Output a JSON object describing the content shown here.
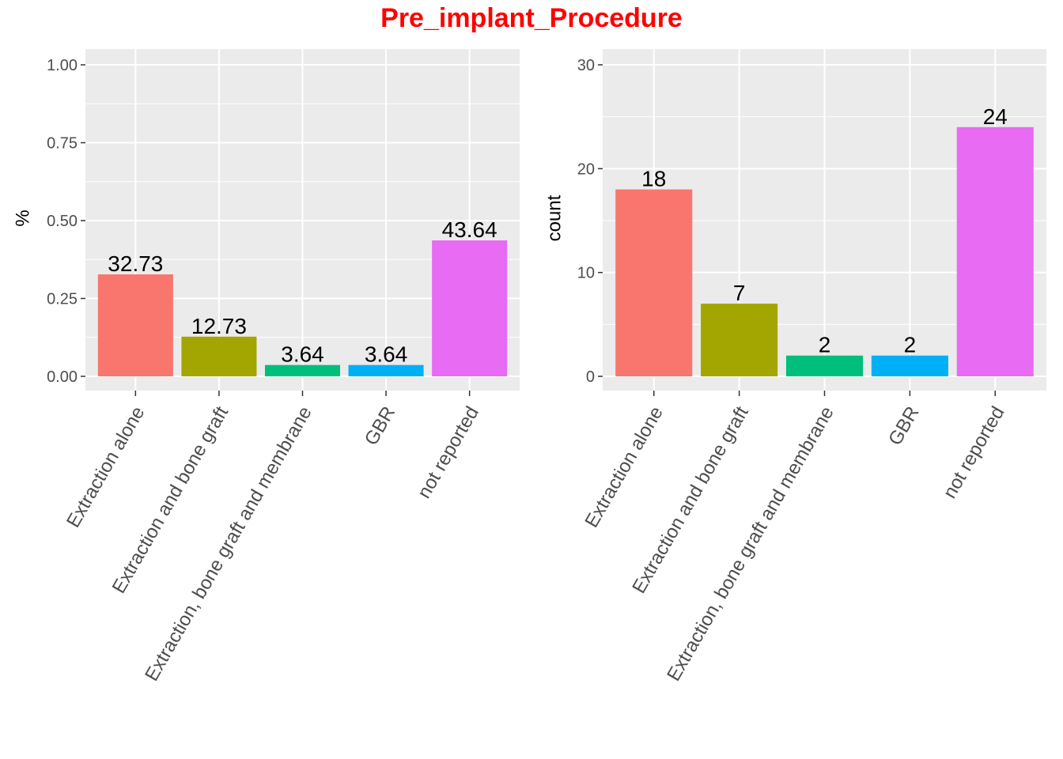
{
  "title": "Pre_implant_Procedure",
  "colors": {
    "title": "#ff0000",
    "panel_bg": "#ebebeb",
    "grid": "#ffffff",
    "bars": [
      "#f8766d",
      "#a3a500",
      "#00bf7d",
      "#00b0f6",
      "#e76bf3"
    ]
  },
  "chart_data": [
    {
      "type": "bar",
      "categories": [
        "Extraction alone",
        "Extraction and bone graft",
        "Extraction, bone graft and membrane",
        "GBR",
        "not reported"
      ],
      "values": [
        0.3273,
        0.1273,
        0.0364,
        0.0364,
        0.4364
      ],
      "data_labels": [
        "32.73",
        "12.73",
        "3.64",
        "3.64",
        "43.64"
      ],
      "ylabel": "%",
      "xlabel": "",
      "ylim": [
        0,
        1
      ],
      "yticks": [
        0,
        0.25,
        0.5,
        0.75,
        1
      ],
      "ytick_labels": [
        "0.00",
        "0.25",
        "0.50",
        "0.75",
        "1.00"
      ],
      "grid": true
    },
    {
      "type": "bar",
      "categories": [
        "Extraction alone",
        "Extraction and bone graft",
        "Extraction, bone graft and membrane",
        "GBR",
        "not reported"
      ],
      "values": [
        18,
        7,
        2,
        2,
        24
      ],
      "data_labels": [
        "18",
        "7",
        "2",
        "2",
        "24"
      ],
      "ylabel": "count",
      "xlabel": "",
      "ylim": [
        0,
        30
      ],
      "yticks": [
        0,
        10,
        20,
        30
      ],
      "ytick_labels": [
        "0",
        "10",
        "20",
        "30"
      ],
      "grid": true
    }
  ]
}
